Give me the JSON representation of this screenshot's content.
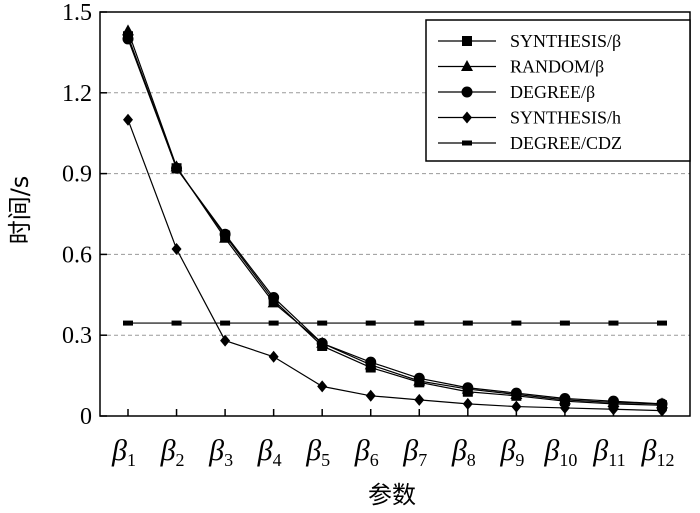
{
  "chart_data": {
    "type": "line",
    "title": "",
    "xlabel": "参数",
    "ylabel": "时间/s",
    "ylim": [
      0,
      1.5
    ],
    "yticks": [
      "0",
      "0.3",
      "0.6",
      "0.9",
      "1.2",
      "1.5"
    ],
    "ytick_values": [
      0,
      0.3,
      0.6,
      0.9,
      1.2,
      1.5
    ],
    "categories": [
      "β1",
      "β2",
      "β3",
      "β4",
      "β5",
      "β6",
      "β7",
      "β8",
      "β9",
      "β10",
      "β11",
      "β12"
    ],
    "category_symbol": "β",
    "category_subscripts": [
      "1",
      "2",
      "3",
      "4",
      "5",
      "6",
      "7",
      "8",
      "9",
      "10",
      "11",
      "12"
    ],
    "grid": "horizontal dashed",
    "legend_position": "top-right",
    "series": [
      {
        "name": "SYNTHESIS/β",
        "marker": "square",
        "values": [
          1.41,
          0.92,
          0.67,
          0.43,
          0.26,
          0.18,
          0.125,
          0.09,
          0.075,
          0.055,
          0.045,
          0.04
        ]
      },
      {
        "name": "RANDOM/β",
        "marker": "triangle",
        "values": [
          1.43,
          0.925,
          0.66,
          0.42,
          0.27,
          0.19,
          0.13,
          0.1,
          0.08,
          0.06,
          0.05,
          0.045
        ]
      },
      {
        "name": "DEGREE/β",
        "marker": "circle",
        "values": [
          1.4,
          0.92,
          0.675,
          0.44,
          0.27,
          0.2,
          0.14,
          0.105,
          0.085,
          0.065,
          0.055,
          0.045
        ]
      },
      {
        "name": "SYNTHESIS/h",
        "marker": "diamond",
        "values": [
          1.1,
          0.62,
          0.28,
          0.22,
          0.11,
          0.075,
          0.06,
          0.045,
          0.035,
          0.03,
          0.025,
          0.02
        ]
      },
      {
        "name": "DEGREE/CDZ",
        "marker": "dash",
        "values": [
          0.345,
          0.345,
          0.345,
          0.345,
          0.345,
          0.345,
          0.345,
          0.345,
          0.345,
          0.345,
          0.345,
          0.345
        ]
      }
    ]
  }
}
